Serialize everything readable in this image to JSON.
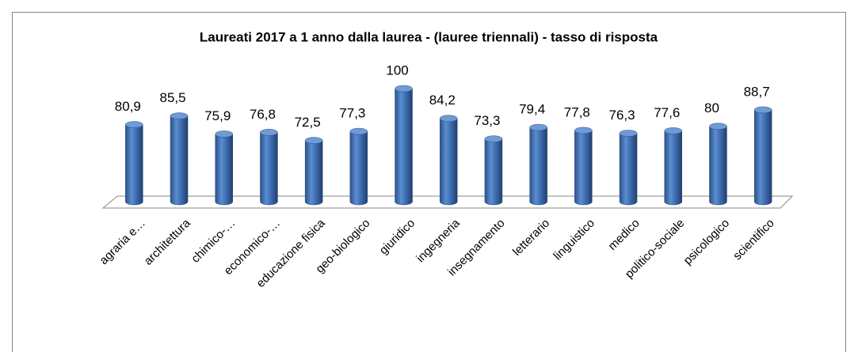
{
  "chart_data": {
    "type": "bar",
    "title": "Laureati 2017 a 1 anno dalla laurea - (lauree triennali) - tasso di risposta",
    "categories": [
      "agraria e…",
      "architettura",
      "chimico-…",
      "economico-…",
      "educazione fisica",
      "geo-biologico",
      "giuridico",
      "ingegneria",
      "insegnamento",
      "letterario",
      "linguistico",
      "medico",
      "politico-sociale",
      "psicologico",
      "scientifico"
    ],
    "values": [
      80.9,
      85.5,
      75.9,
      76.8,
      72.5,
      77.3,
      100,
      84.2,
      73.3,
      79.4,
      77.8,
      76.3,
      77.6,
      80,
      88.7
    ],
    "value_labels": [
      "80,9",
      "85,5",
      "75,9",
      "76,8",
      "72,5",
      "77,3",
      "100",
      "84,2",
      "73,3",
      "79,4",
      "77,8",
      "76,3",
      "77,6",
      "80",
      "88,7"
    ],
    "color": "#4f81bd",
    "ylim": [
      40,
      100
    ]
  }
}
